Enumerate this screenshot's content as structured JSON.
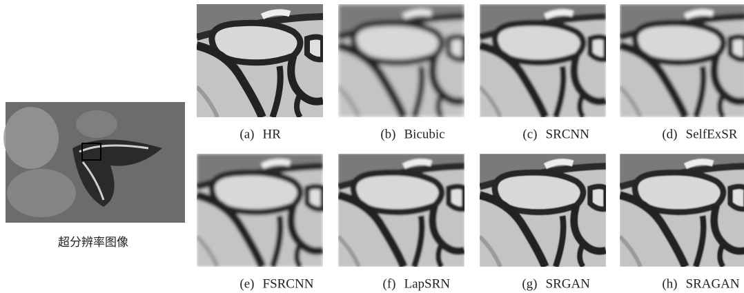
{
  "source_image": {
    "caption": "超分辨率图像"
  },
  "panels": [
    {
      "letter": "(a)",
      "name": "HR"
    },
    {
      "letter": "(b)",
      "name": "Bicubic"
    },
    {
      "letter": "(c)",
      "name": "SRCNN"
    },
    {
      "letter": "(d)",
      "name": "SelfExSR"
    },
    {
      "letter": "(e)",
      "name": "FSRCNN"
    },
    {
      "letter": "(f)",
      "name": "LapSRN"
    },
    {
      "letter": "(g)",
      "name": "SRGAN"
    },
    {
      "letter": "(h)",
      "name": "SRAGAN"
    }
  ]
}
